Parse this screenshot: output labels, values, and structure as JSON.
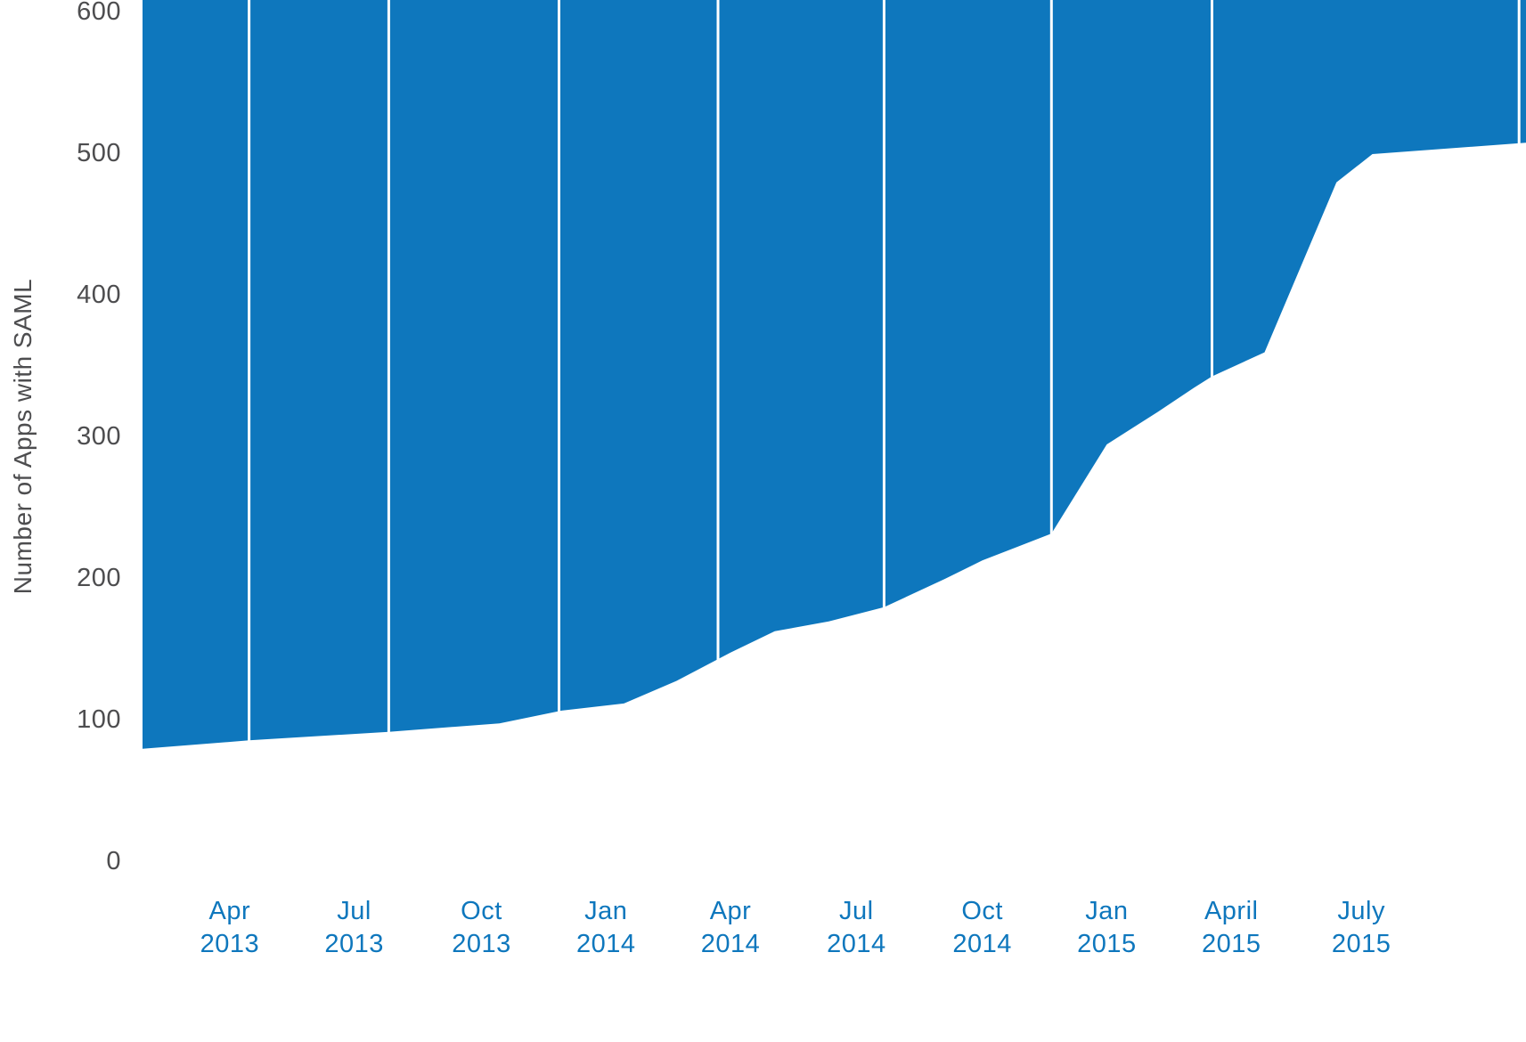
{
  "chart_data": {
    "type": "area",
    "title": "",
    "xlabel": "",
    "ylabel": "Number of Apps with SAML",
    "ylim": [
      0,
      600
    ],
    "y_ticks": [
      "0",
      "100",
      "200",
      "300",
      "400",
      "500",
      "600"
    ],
    "y_tick_values": [
      0,
      100,
      200,
      300,
      400,
      500,
      600
    ],
    "x_tick_labels": [
      {
        "month": "Apr",
        "year": "2013"
      },
      {
        "month": "Jul",
        "year": "2013"
      },
      {
        "month": "Oct",
        "year": "2013"
      },
      {
        "month": "Jan",
        "year": "2014"
      },
      {
        "month": "Apr",
        "year": "2014"
      },
      {
        "month": "Jul",
        "year": "2014"
      },
      {
        "month": "Oct",
        "year": "2014"
      },
      {
        "month": "Jan",
        "year": "2015"
      },
      {
        "month": "April",
        "year": "2015"
      },
      {
        "month": "July",
        "year": "2015"
      }
    ],
    "x_tick_positions": [
      0.063,
      0.153,
      0.245,
      0.335,
      0.425,
      0.516,
      0.607,
      0.697,
      0.787,
      0.881
    ],
    "gridline_positions": [
      0.077,
      0.178,
      0.301,
      0.416,
      0.536,
      0.657,
      0.773,
      0.995
    ],
    "fill_direction": "above-line",
    "grid": "vertical-white-over-area",
    "legend": "none",
    "series": [
      {
        "name": "Number of Apps with SAML",
        "points": [
          {
            "x": 0.0,
            "y": 80
          },
          {
            "x": 0.077,
            "y": 86
          },
          {
            "x": 0.178,
            "y": 92
          },
          {
            "x": 0.258,
            "y": 98
          },
          {
            "x": 0.303,
            "y": 107
          },
          {
            "x": 0.348,
            "y": 112
          },
          {
            "x": 0.386,
            "y": 128
          },
          {
            "x": 0.425,
            "y": 148
          },
          {
            "x": 0.457,
            "y": 163
          },
          {
            "x": 0.496,
            "y": 170
          },
          {
            "x": 0.536,
            "y": 180
          },
          {
            "x": 0.58,
            "y": 200
          },
          {
            "x": 0.607,
            "y": 213
          },
          {
            "x": 0.657,
            "y": 232
          },
          {
            "x": 0.697,
            "y": 295
          },
          {
            "x": 0.734,
            "y": 318
          },
          {
            "x": 0.76,
            "y": 335
          },
          {
            "x": 0.773,
            "y": 343
          },
          {
            "x": 0.811,
            "y": 360
          },
          {
            "x": 0.863,
            "y": 480
          },
          {
            "x": 0.889,
            "y": 500
          },
          {
            "x": 1.0,
            "y": 508
          }
        ]
      }
    ],
    "colors": {
      "area": "#0e77bd",
      "x_label_text": "#0e77bd",
      "y_label_text": "#4d4d4f",
      "axis_title_text": "#4d4d4f",
      "gridline": "#ffffff",
      "background": "#ffffff"
    }
  }
}
